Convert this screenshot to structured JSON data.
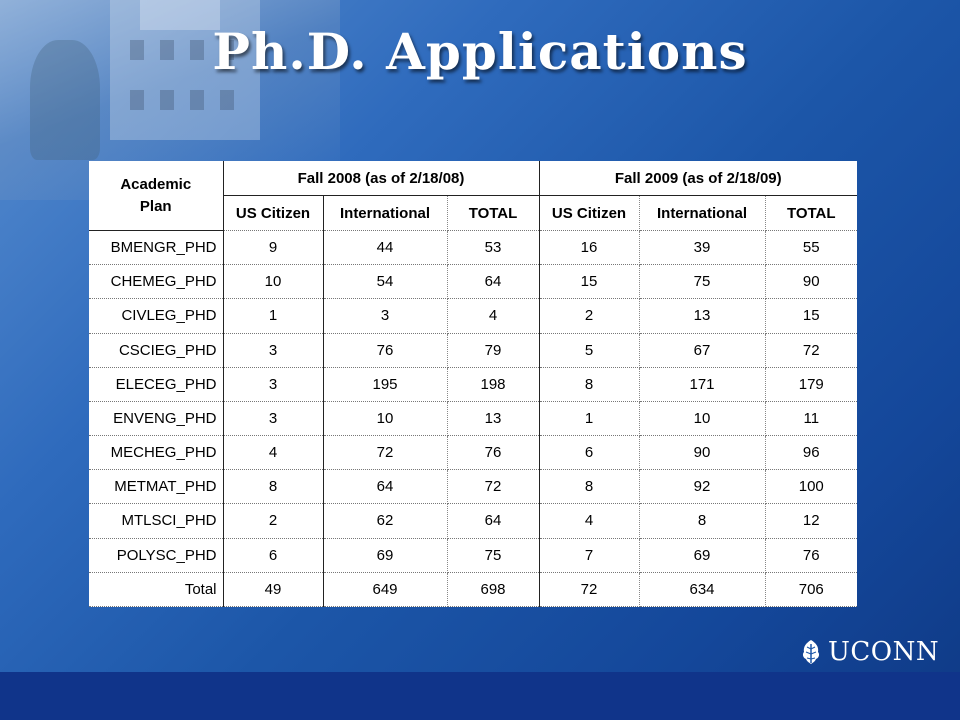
{
  "slide": {
    "title": "Ph.D. Applications",
    "logo_text": "UCONN"
  },
  "table": {
    "plan_header": "Academic Plan",
    "groups": [
      "Fall 2008 (as of 2/18/08)",
      "Fall 2009 (as of 2/18/09)"
    ],
    "subheaders": [
      "US Citizen",
      "International",
      "TOTAL",
      "US Citizen",
      "International",
      "TOTAL"
    ],
    "rows": [
      {
        "plan": "BMENGR_PHD",
        "values": [
          "9",
          "44",
          "53",
          "16",
          "39",
          "55"
        ]
      },
      {
        "plan": "CHEMEG_PHD",
        "values": [
          "10",
          "54",
          "64",
          "15",
          "75",
          "90"
        ]
      },
      {
        "plan": "CIVLEG_PHD",
        "values": [
          "1",
          "3",
          "4",
          "2",
          "13",
          "15"
        ]
      },
      {
        "plan": "CSCIEG_PHD",
        "values": [
          "3",
          "76",
          "79",
          "5",
          "67",
          "72"
        ]
      },
      {
        "plan": "ELECEG_PHD",
        "values": [
          "3",
          "195",
          "198",
          "8",
          "171",
          "179"
        ]
      },
      {
        "plan": "ENVENG_PHD",
        "values": [
          "3",
          "10",
          "13",
          "1",
          "10",
          "11"
        ]
      },
      {
        "plan": "MECHEG_PHD",
        "values": [
          "4",
          "72",
          "76",
          "6",
          "90",
          "96"
        ]
      },
      {
        "plan": "METMAT_PHD",
        "values": [
          "8",
          "64",
          "72",
          "8",
          "92",
          "100"
        ]
      },
      {
        "plan": "MTLSCI_PHD",
        "values": [
          "2",
          "62",
          "64",
          "4",
          "8",
          "12"
        ]
      },
      {
        "plan": "POLYSC_PHD",
        "values": [
          "6",
          "69",
          "75",
          "7",
          "69",
          "76"
        ]
      },
      {
        "plan": "Total",
        "values": [
          "49",
          "649",
          "698",
          "72",
          "634",
          "706"
        ]
      }
    ]
  }
}
